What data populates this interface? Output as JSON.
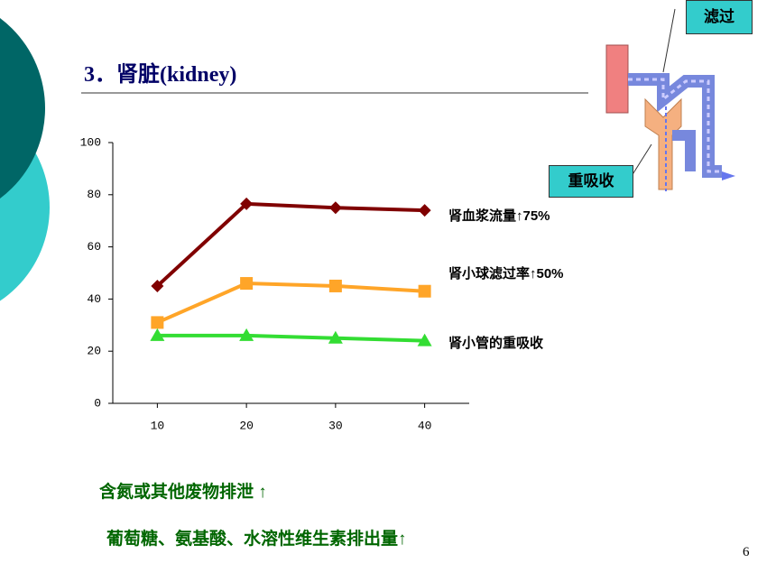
{
  "slide": {
    "title": "3．肾脏(kidney)",
    "filter_label": "滤过",
    "reabsorb_label": "重吸收",
    "notes": [
      "含氮或其他废物排泄 ↑",
      "葡萄糖、氨基酸、水溶性维生素排出量↑"
    ],
    "page_number": "6"
  },
  "chart_data": {
    "type": "line",
    "x": [
      10,
      20,
      30,
      40
    ],
    "xlim": [
      5,
      45
    ],
    "xticks": [
      10,
      20,
      30,
      40
    ],
    "ylim": [
      0,
      100
    ],
    "yticks": [
      0,
      20,
      40,
      60,
      80,
      100
    ],
    "series": [
      {
        "name": "肾血浆流量↑75%",
        "color": "#800000",
        "marker": "diamond",
        "values": [
          45,
          76.5,
          75,
          74
        ]
      },
      {
        "name": "肾小球滤过率↑50%",
        "color": "#ffa528",
        "marker": "square",
        "values": [
          31,
          46,
          45,
          43
        ]
      },
      {
        "name": "肾小管的重吸收",
        "color": "#33dd33",
        "marker": "triangle",
        "values": [
          26,
          26,
          25,
          24
        ]
      }
    ]
  }
}
